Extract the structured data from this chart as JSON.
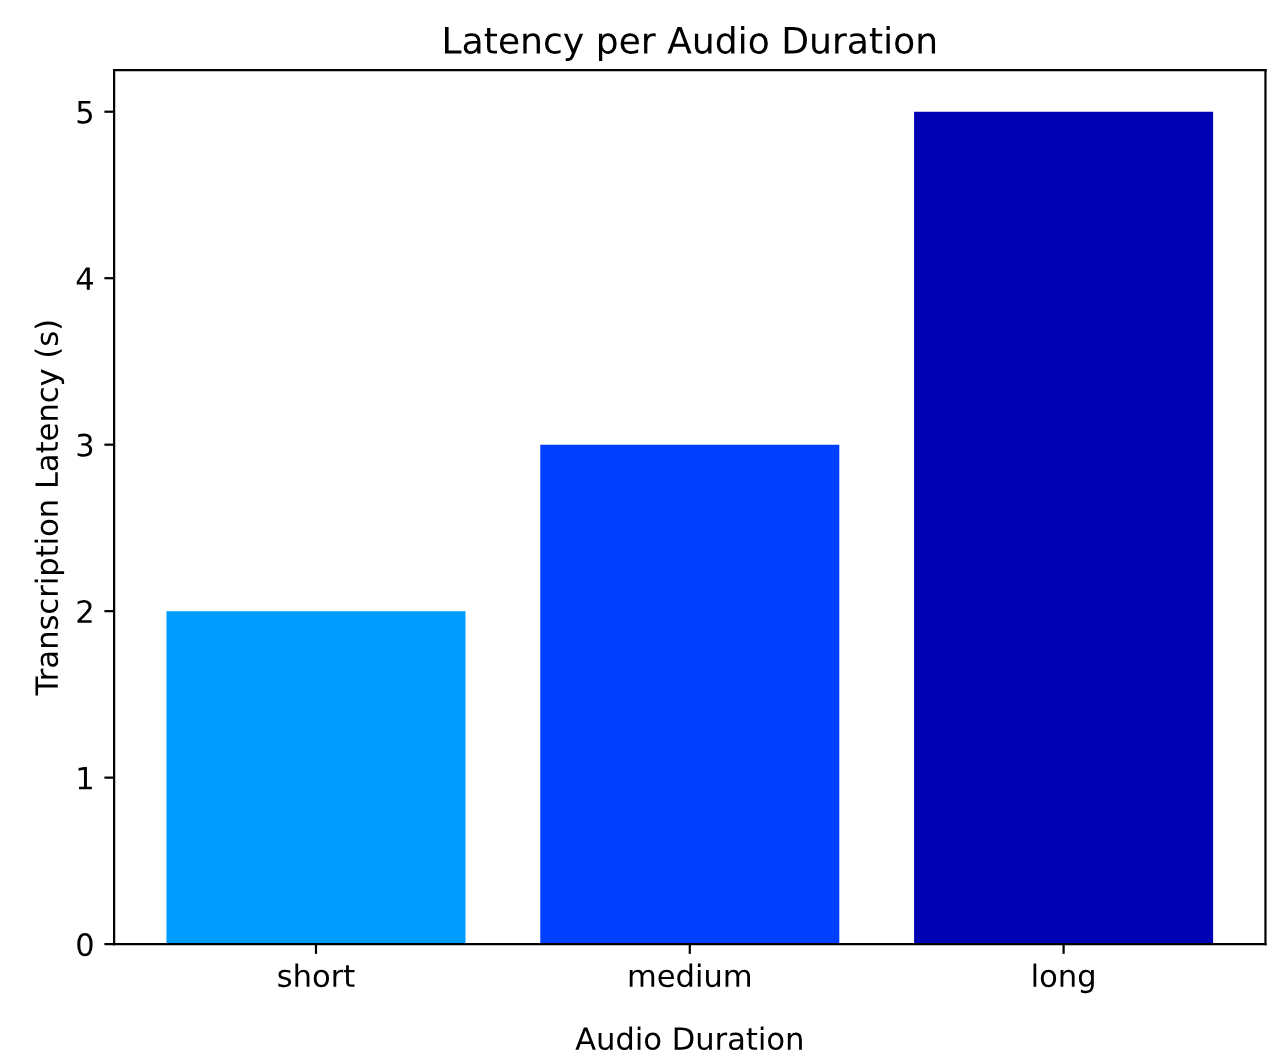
{
  "chart_data": {
    "type": "bar",
    "title": "Latency per Audio Duration",
    "xlabel": "Audio Duration",
    "ylabel": "Transcription Latency (s)",
    "categories": [
      "short",
      "medium",
      "long"
    ],
    "values": [
      2,
      3,
      5
    ],
    "colors": [
      "#009dff",
      "#003fff",
      "#0000b4"
    ],
    "ylim": [
      0,
      5.25
    ],
    "yticks": [
      0,
      1,
      2,
      3,
      4,
      5
    ],
    "grid": false
  }
}
